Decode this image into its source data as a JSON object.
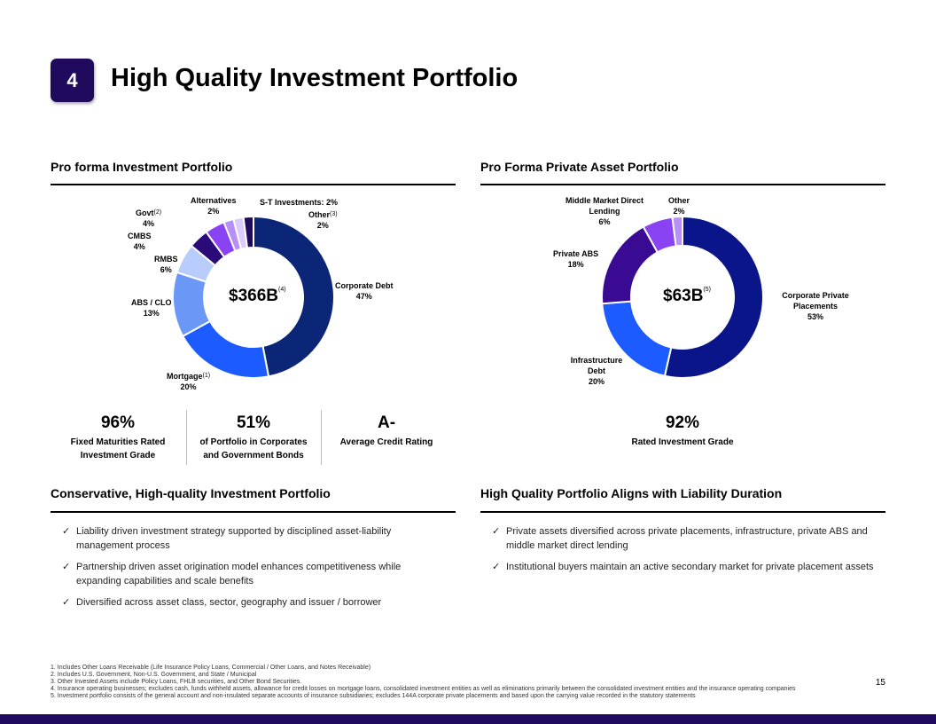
{
  "header": {
    "badge": "4",
    "title": "High Quality Investment Portfolio"
  },
  "left": {
    "heading": "Pro forma Investment Portfolio",
    "center_value": "$366B",
    "center_note": "(4)",
    "stats": [
      {
        "value": "96%",
        "label1": "Fixed Maturities Rated",
        "label2": "Investment Grade"
      },
      {
        "value": "51%",
        "label1": "of Portfolio in Corporates",
        "label2": "and Government Bonds"
      },
      {
        "value": "A-",
        "label1": "Average Credit Rating",
        "label2": ""
      }
    ]
  },
  "right": {
    "heading": "Pro Forma Private Asset Portfolio",
    "center_value": "$63B",
    "center_note": "(5)",
    "stats": [
      {
        "value": "92%",
        "label1": "Rated Investment Grade"
      }
    ]
  },
  "chart_data": [
    {
      "type": "pie",
      "title": "Pro forma Investment Portfolio",
      "total": "$366B",
      "categories": [
        {
          "name": "Corporate Debt",
          "value": 47,
          "label": "47%",
          "note": "",
          "color": "#0c2677"
        },
        {
          "name": "Mortgage",
          "value": 20,
          "label": "20%",
          "note": "(1)",
          "color": "#1c5bff"
        },
        {
          "name": "ABS / CLO",
          "value": 13,
          "label": "13%",
          "note": "",
          "color": "#6b98f7"
        },
        {
          "name": "RMBS",
          "value": 6,
          "label": "6%",
          "note": "",
          "color": "#b9cdfd"
        },
        {
          "name": "CMBS",
          "value": 4,
          "label": "4%",
          "note": "",
          "color": "#2b0a7a"
        },
        {
          "name": "Govt",
          "value": 4,
          "label": "4%",
          "note": "(2)",
          "color": "#8a43f2"
        },
        {
          "name": "Alternatives",
          "value": 2,
          "label": "2%",
          "note": "",
          "color": "#b790f5"
        },
        {
          "name": "S-T Investments",
          "value": 2,
          "label": "2%",
          "note": "",
          "color": "#dccbfb"
        },
        {
          "name": "Other",
          "value": 2,
          "label": "2%",
          "note": "(3)",
          "color": "#200a5c"
        }
      ]
    },
    {
      "type": "pie",
      "title": "Pro Forma Private Asset Portfolio",
      "total": "$63B",
      "categories": [
        {
          "name": "Corporate Private Placements",
          "value": 53,
          "label": "53%",
          "color": "#0a158a"
        },
        {
          "name": "Infrastructure Debt",
          "value": 20,
          "label": "20%",
          "color": "#1c5bff"
        },
        {
          "name": "Private ABS",
          "value": 18,
          "label": "18%",
          "color": "#3a0b92"
        },
        {
          "name": "Middle Market Direct Lending",
          "value": 6,
          "label": "6%",
          "color": "#8a43f2"
        },
        {
          "name": "Other",
          "value": 2,
          "label": "2%",
          "color": "#b790f5"
        }
      ]
    }
  ],
  "bottom_left": {
    "heading": "Conservative, High-quality Investment Portfolio",
    "bullets": [
      "Liability driven investment strategy supported by disciplined asset-liability management process",
      "Partnership driven asset origination model enhances competitiveness while expanding capabilities and scale benefits",
      "Diversified across asset class, sector, geography and issuer / borrower"
    ]
  },
  "bottom_right": {
    "heading": "High Quality Portfolio Aligns with Liability Duration",
    "bullets": [
      "Private assets diversified across private placements, infrastructure, private ABS and middle market direct lending",
      "Institutional buyers maintain an active secondary market for private placement assets"
    ]
  },
  "check": "✓",
  "footnotes": [
    "1.  Includes Other Loans Receivable (Life Insurance Policy Loans, Commercial / Other Loans, and Notes Receivable)",
    "2.  Includes U.S. Government, Non-U.S. Government, and State / Municipal",
    "3.  Other Invested Assets include Policy Loans, FHLB securities, and Other Bond Securities.",
    "4.  Insurance operating businesses; excludes cash, funds withheld assets, allowance for credit losses on mortgage loans, consolidated investment entities as well as eliminations primarily between the consolidated investment entities and the insurance operating companies",
    "5.  Investment portfolio consists of the general account and non-insulated separate accounts of insurance subsidiaries; excludes 144A corporate private placements and based upon the carrying value recorded in the statutory statements"
  ],
  "page_number": "15"
}
